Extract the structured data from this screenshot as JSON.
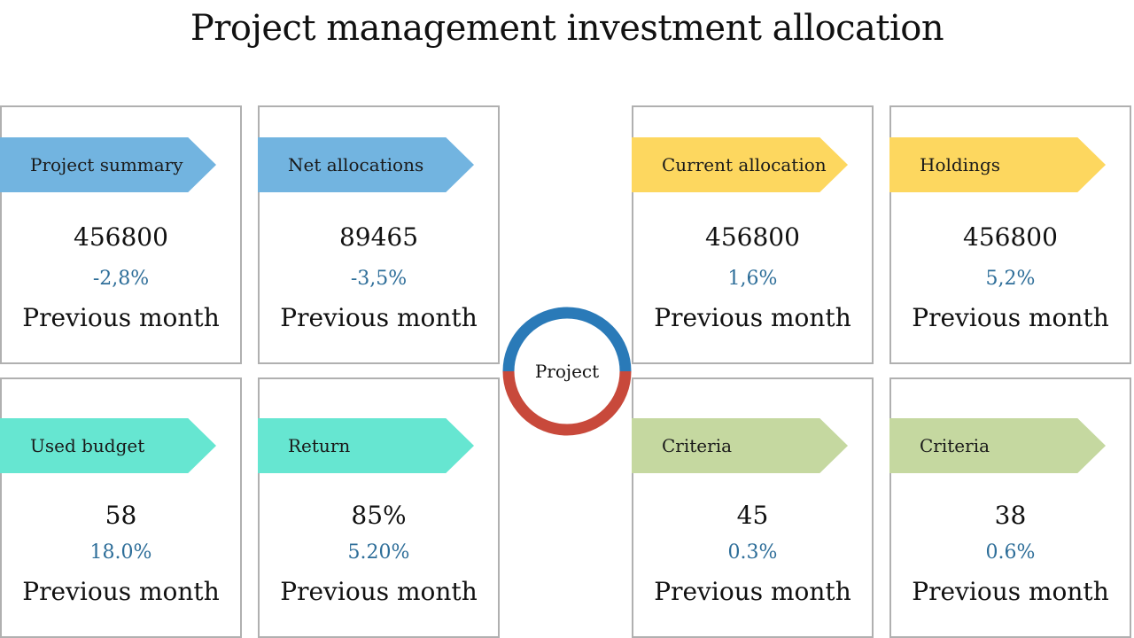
{
  "title": "Project management investment allocation",
  "center": {
    "label": "Project",
    "top_color": "#2a7ab8",
    "bottom_color": "#c8493b"
  },
  "cards": [
    {
      "tag": "Project summary",
      "value": "456800",
      "change": "-2,8%",
      "caption": "Previous month",
      "color": "#72b4e0"
    },
    {
      "tag": "Net allocations",
      "value": "89465",
      "change": "-3,5%",
      "caption": "Previous month",
      "color": "#72b4e0"
    },
    {
      "tag": "Current allocation",
      "value": "456800",
      "change": "1,6%",
      "caption": "Previous month",
      "color": "#fdd75f"
    },
    {
      "tag": "Holdings",
      "value": "456800",
      "change": "5,2%",
      "caption": "Previous month",
      "color": "#fdd75f"
    },
    {
      "tag": "Used budget",
      "value": "58",
      "change": "18.0%",
      "caption": "Previous month",
      "color": "#66e6d1"
    },
    {
      "tag": "Return",
      "value": "85%",
      "change": "5.20%",
      "caption": "Previous month",
      "color": "#66e6d1"
    },
    {
      "tag": "Criteria",
      "value": "45",
      "change": "0.3%",
      "caption": "Previous month",
      "color": "#c5d8a0"
    },
    {
      "tag": "Criteria",
      "value": "38",
      "change": "0.6%",
      "caption": "Previous month",
      "color": "#c5d8a0"
    }
  ]
}
